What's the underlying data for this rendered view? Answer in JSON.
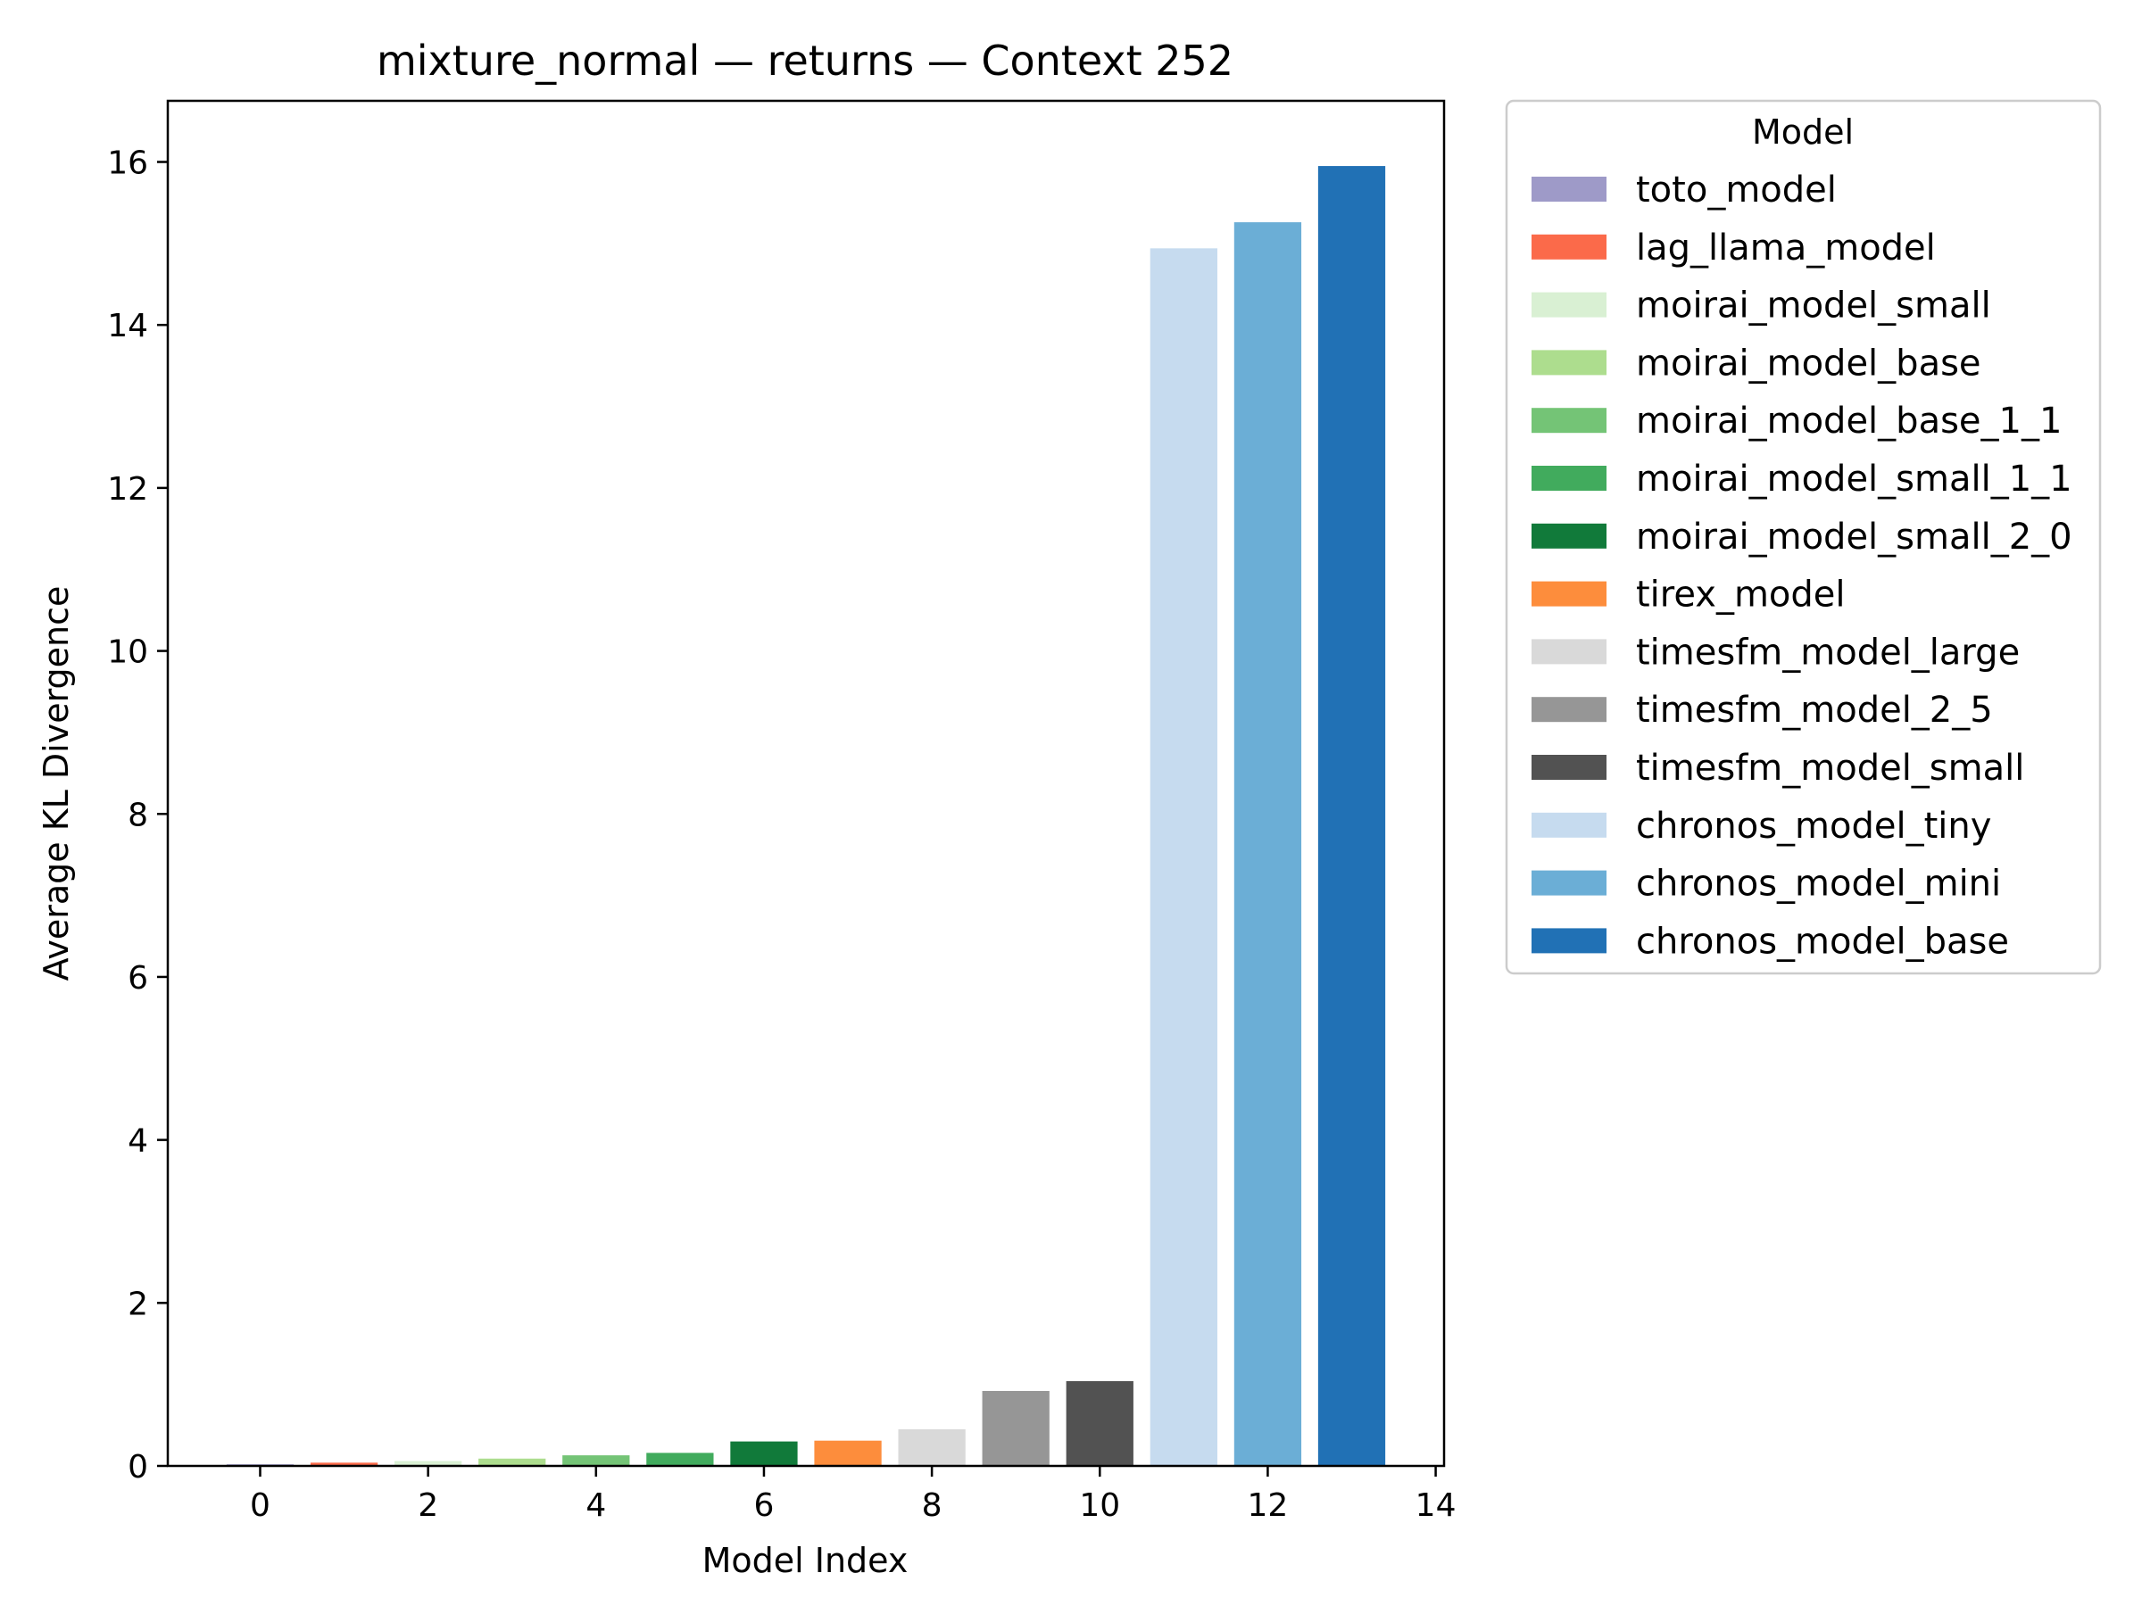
{
  "chart_data": {
    "type": "bar",
    "title": "mixture_normal — returns — Context 252",
    "xlabel": "Model Index",
    "ylabel": "Average KL Divergence",
    "xlim": [
      -1.1,
      14.1
    ],
    "ylim": [
      0,
      16.75
    ],
    "xticks": [
      "0",
      "2",
      "4",
      "6",
      "8",
      "10",
      "12",
      "14"
    ],
    "yticks": [
      "0",
      "2",
      "4",
      "6",
      "8",
      "10",
      "12",
      "14",
      "16"
    ],
    "grid": false,
    "legend": {
      "title": "Model",
      "placement": "outside-right-top"
    },
    "series": [
      {
        "name": "toto_model",
        "x": 0,
        "value": 0.02,
        "color": "#9e9ac8"
      },
      {
        "name": "lag_llama_model",
        "x": 1,
        "value": 0.04,
        "color": "#fb6a4a"
      },
      {
        "name": "moirai_model_small",
        "x": 2,
        "value": 0.06,
        "color": "#d9f0d3"
      },
      {
        "name": "moirai_model_base",
        "x": 3,
        "value": 0.09,
        "color": "#addd8e"
      },
      {
        "name": "moirai_model_base_1_1",
        "x": 4,
        "value": 0.13,
        "color": "#74c476"
      },
      {
        "name": "moirai_model_small_1_1",
        "x": 5,
        "value": 0.16,
        "color": "#41ab5d"
      },
      {
        "name": "moirai_model_small_2_0",
        "x": 6,
        "value": 0.3,
        "color": "#117a3a"
      },
      {
        "name": "tirex_model",
        "x": 7,
        "value": 0.31,
        "color": "#fd8d3c"
      },
      {
        "name": "timesfm_model_large",
        "x": 8,
        "value": 0.45,
        "color": "#d9d9d9"
      },
      {
        "name": "timesfm_model_2_5",
        "x": 9,
        "value": 0.92,
        "color": "#969696"
      },
      {
        "name": "timesfm_model_small",
        "x": 10,
        "value": 1.04,
        "color": "#525252"
      },
      {
        "name": "chronos_model_tiny",
        "x": 11,
        "value": 14.94,
        "color": "#c6dbef"
      },
      {
        "name": "chronos_model_mini",
        "x": 12,
        "value": 15.26,
        "color": "#6baed6"
      },
      {
        "name": "chronos_model_base",
        "x": 13,
        "value": 15.95,
        "color": "#2171b5"
      }
    ]
  }
}
